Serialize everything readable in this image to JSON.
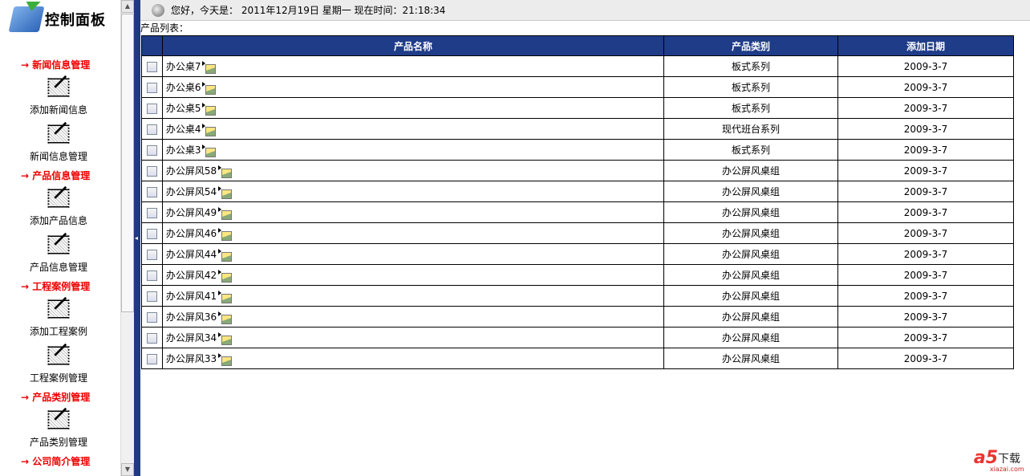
{
  "sidebar": {
    "title": "控制面板",
    "sections": [
      {
        "label": "→ 新闻信息管理",
        "items": [
          "添加新闻信息",
          "新闻信息管理"
        ]
      },
      {
        "label": "→ 产品信息管理",
        "items": [
          "添加产品信息",
          "产品信息管理"
        ]
      },
      {
        "label": "→ 工程案例管理",
        "items": [
          "添加工程案例",
          "工程案例管理"
        ]
      },
      {
        "label": "→ 产品类别管理",
        "items": [
          "产品类别管理"
        ]
      },
      {
        "label": "→ 公司简介管理",
        "items": []
      }
    ]
  },
  "header": {
    "greeting": "您好，今天是： 2011年12月19日 星期一 现在时间：21:18:34"
  },
  "list_label": "产品列表：",
  "table": {
    "headers": [
      "产品名称",
      "产品类别",
      "添加日期"
    ],
    "rows": [
      [
        "办公桌7",
        "板式系列",
        "2009-3-7"
      ],
      [
        "办公桌6",
        "板式系列",
        "2009-3-7"
      ],
      [
        "办公桌5",
        "板式系列",
        "2009-3-7"
      ],
      [
        "办公桌4",
        "现代班台系列",
        "2009-3-7"
      ],
      [
        "办公桌3",
        "板式系列",
        "2009-3-7"
      ],
      [
        "办公屏风58",
        "办公屏风桌组",
        "2009-3-7"
      ],
      [
        "办公屏风54",
        "办公屏风桌组",
        "2009-3-7"
      ],
      [
        "办公屏风49",
        "办公屏风桌组",
        "2009-3-7"
      ],
      [
        "办公屏风46",
        "办公屏风桌组",
        "2009-3-7"
      ],
      [
        "办公屏风44",
        "办公屏风桌组",
        "2009-3-7"
      ],
      [
        "办公屏风42",
        "办公屏风桌组",
        "2009-3-7"
      ],
      [
        "办公屏风41",
        "办公屏风桌组",
        "2009-3-7"
      ],
      [
        "办公屏风36",
        "办公屏风桌组",
        "2009-3-7"
      ],
      [
        "办公屏风34",
        "办公屏风桌组",
        "2009-3-7"
      ],
      [
        "办公屏风33",
        "办公屏风桌组",
        "2009-3-7"
      ]
    ]
  },
  "watermark": {
    "logo": "a5",
    "text": "下载",
    "url": "xiazai.com"
  },
  "colors": {
    "header_bg": "#1f3c88",
    "section": "#ee0000"
  }
}
